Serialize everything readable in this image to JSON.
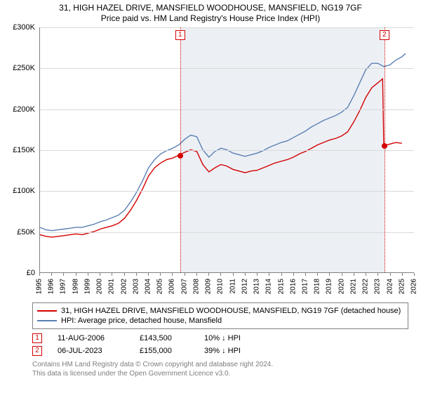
{
  "title_line1": "31, HIGH HAZEL DRIVE, MANSFIELD WOODHOUSE, MANSFIELD, NG19 7GF",
  "title_line2": "Price paid vs. HM Land Registry's House Price Index (HPI)",
  "chart": {
    "type": "line",
    "background_color": "#ffffff",
    "grid_color": "#d9d9d9",
    "axis_color": "#808080",
    "shade_color": "#dde3ec",
    "xmin": 1995,
    "xmax": 2026,
    "ymin": 0,
    "ymax": 300,
    "y_ticks": [
      0,
      50,
      100,
      150,
      200,
      250,
      300
    ],
    "y_tick_labels": [
      "£0",
      "£50K",
      "£100K",
      "£150K",
      "£200K",
      "£250K",
      "£300K"
    ],
    "x_ticks": [
      1995,
      1996,
      1997,
      1998,
      1999,
      2000,
      2001,
      2002,
      2003,
      2004,
      2005,
      2006,
      2007,
      2008,
      2009,
      2010,
      2011,
      2012,
      2013,
      2014,
      2015,
      2016,
      2017,
      2018,
      2019,
      2020,
      2021,
      2022,
      2023,
      2024,
      2025,
      2026
    ],
    "shade_start": 2006.6,
    "shade_end": 2023.5,
    "series": [
      {
        "name": "property",
        "label": "31, HIGH HAZEL DRIVE, MANSFIELD WOODHOUSE, MANSFIELD, NG19 7GF (detached house)",
        "color": "#d40000",
        "line_width": 1.4,
        "points": [
          [
            1995,
            46
          ],
          [
            1995.5,
            44
          ],
          [
            1996,
            43
          ],
          [
            1996.5,
            44
          ],
          [
            1997,
            45
          ],
          [
            1997.5,
            46
          ],
          [
            1998,
            47
          ],
          [
            1998.5,
            46
          ],
          [
            1999,
            48
          ],
          [
            1999.5,
            50
          ],
          [
            2000,
            53
          ],
          [
            2000.5,
            55
          ],
          [
            2001,
            57
          ],
          [
            2001.5,
            60
          ],
          [
            2002,
            66
          ],
          [
            2002.5,
            76
          ],
          [
            2003,
            88
          ],
          [
            2003.5,
            102
          ],
          [
            2004,
            118
          ],
          [
            2004.5,
            128
          ],
          [
            2005,
            134
          ],
          [
            2005.5,
            138
          ],
          [
            2006,
            140
          ],
          [
            2006.5,
            143.5
          ],
          [
            2007,
            147
          ],
          [
            2007.5,
            150
          ],
          [
            2008,
            148
          ],
          [
            2008.5,
            132
          ],
          [
            2009,
            123
          ],
          [
            2009.5,
            128
          ],
          [
            2010,
            132
          ],
          [
            2010.5,
            130
          ],
          [
            2011,
            126
          ],
          [
            2011.5,
            124
          ],
          [
            2012,
            122
          ],
          [
            2012.5,
            124
          ],
          [
            2013,
            125
          ],
          [
            2013.5,
            128
          ],
          [
            2014,
            131
          ],
          [
            2014.5,
            134
          ],
          [
            2015,
            136
          ],
          [
            2015.5,
            138
          ],
          [
            2016,
            141
          ],
          [
            2016.5,
            145
          ],
          [
            2017,
            148
          ],
          [
            2017.5,
            152
          ],
          [
            2018,
            156
          ],
          [
            2018.5,
            159
          ],
          [
            2019,
            162
          ],
          [
            2019.5,
            164
          ],
          [
            2020,
            167
          ],
          [
            2020.5,
            172
          ],
          [
            2021,
            184
          ],
          [
            2021.5,
            198
          ],
          [
            2022,
            214
          ],
          [
            2022.5,
            226
          ],
          [
            2023,
            232
          ],
          [
            2023.4,
            237
          ],
          [
            2023.5,
            155
          ],
          [
            2024,
            157
          ],
          [
            2024.5,
            159
          ],
          [
            2025,
            158
          ]
        ]
      },
      {
        "name": "hpi",
        "label": "HPI: Average price, detached house, Mansfield",
        "color": "#5b7fb3",
        "line_width": 1.4,
        "points": [
          [
            1995,
            55
          ],
          [
            1995.5,
            52
          ],
          [
            1996,
            51
          ],
          [
            1996.5,
            52
          ],
          [
            1997,
            53
          ],
          [
            1997.5,
            54
          ],
          [
            1998,
            55
          ],
          [
            1998.5,
            55
          ],
          [
            1999,
            57
          ],
          [
            1999.5,
            59
          ],
          [
            2000,
            62
          ],
          [
            2000.5,
            64
          ],
          [
            2001,
            67
          ],
          [
            2001.5,
            70
          ],
          [
            2002,
            76
          ],
          [
            2002.5,
            86
          ],
          [
            2003,
            98
          ],
          [
            2003.5,
            112
          ],
          [
            2004,
            128
          ],
          [
            2004.5,
            138
          ],
          [
            2005,
            145
          ],
          [
            2005.5,
            149
          ],
          [
            2006,
            152
          ],
          [
            2006.5,
            156
          ],
          [
            2007,
            163
          ],
          [
            2007.5,
            168
          ],
          [
            2008,
            166
          ],
          [
            2008.5,
            150
          ],
          [
            2009,
            141
          ],
          [
            2009.5,
            148
          ],
          [
            2010,
            152
          ],
          [
            2010.5,
            150
          ],
          [
            2011,
            146
          ],
          [
            2011.5,
            144
          ],
          [
            2012,
            142
          ],
          [
            2012.5,
            144
          ],
          [
            2013,
            146
          ],
          [
            2013.5,
            149
          ],
          [
            2014,
            153
          ],
          [
            2014.5,
            156
          ],
          [
            2015,
            159
          ],
          [
            2015.5,
            161
          ],
          [
            2016,
            165
          ],
          [
            2016.5,
            169
          ],
          [
            2017,
            173
          ],
          [
            2017.5,
            178
          ],
          [
            2018,
            182
          ],
          [
            2018.5,
            186
          ],
          [
            2019,
            189
          ],
          [
            2019.5,
            192
          ],
          [
            2020,
            196
          ],
          [
            2020.5,
            202
          ],
          [
            2021,
            216
          ],
          [
            2021.5,
            232
          ],
          [
            2022,
            248
          ],
          [
            2022.5,
            256
          ],
          [
            2023,
            256
          ],
          [
            2023.5,
            252
          ],
          [
            2024,
            254
          ],
          [
            2024.5,
            260
          ],
          [
            2025,
            264
          ],
          [
            2025.3,
            268
          ]
        ]
      }
    ],
    "event_markers": [
      {
        "n": "1",
        "x": 2006.6,
        "y": 143.5,
        "color": "#d40000"
      },
      {
        "n": "2",
        "x": 2023.5,
        "y": 155,
        "color": "#d40000"
      }
    ]
  },
  "legend": {
    "items": [
      {
        "color": "#d40000",
        "label": "31, HIGH HAZEL DRIVE, MANSFIELD WOODHOUSE, MANSFIELD, NG19 7GF (detached house)"
      },
      {
        "color": "#5b7fb3",
        "label": "HPI: Average price, detached house, Mansfield"
      }
    ]
  },
  "events": [
    {
      "n": "1",
      "date": "11-AUG-2006",
      "price": "£143,500",
      "delta": "10% ↓ HPI"
    },
    {
      "n": "2",
      "date": "06-JUL-2023",
      "price": "£155,000",
      "delta": "39% ↓ HPI"
    }
  ],
  "footnote_line1": "Contains HM Land Registry data © Crown copyright and database right 2024.",
  "footnote_line2": "This data is licensed under the Open Government Licence v3.0."
}
